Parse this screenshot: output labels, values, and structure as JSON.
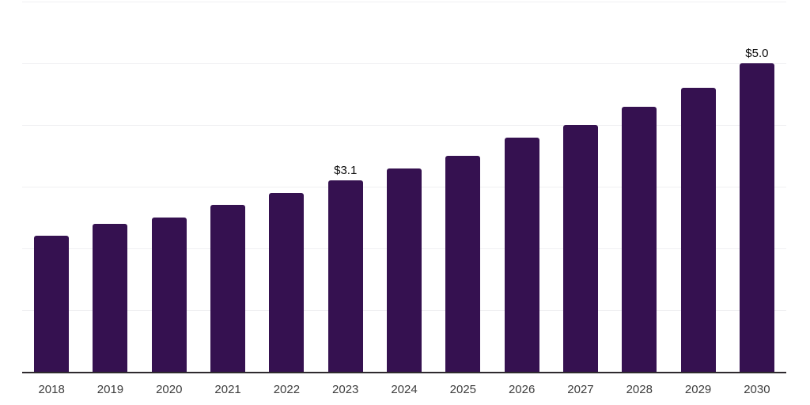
{
  "chart_data": {
    "type": "bar",
    "title": "",
    "xlabel": "",
    "ylabel": "",
    "categories": [
      "2018",
      "2019",
      "2020",
      "2021",
      "2022",
      "2023",
      "2024",
      "2025",
      "2026",
      "2027",
      "2028",
      "2029",
      "2030"
    ],
    "values": [
      2.2,
      2.4,
      2.5,
      2.7,
      2.9,
      3.1,
      3.3,
      3.5,
      3.8,
      4.0,
      4.3,
      4.6,
      5.0
    ],
    "annotations": [
      {
        "category": "2023",
        "text": "$3.1"
      },
      {
        "category": "2030",
        "text": "$5.0"
      }
    ],
    "ylim": [
      0,
      6
    ],
    "gridline_values": [
      1,
      2,
      3,
      4,
      5,
      6
    ],
    "grid": true,
    "legend": "none",
    "colors": {
      "bar": "#351150",
      "axis": "#2e2a2e",
      "gridline": "#f0f0f2",
      "tick_label": "#3d3d3d",
      "value_label": "#0d0d0d",
      "background": "#ffffff"
    }
  }
}
